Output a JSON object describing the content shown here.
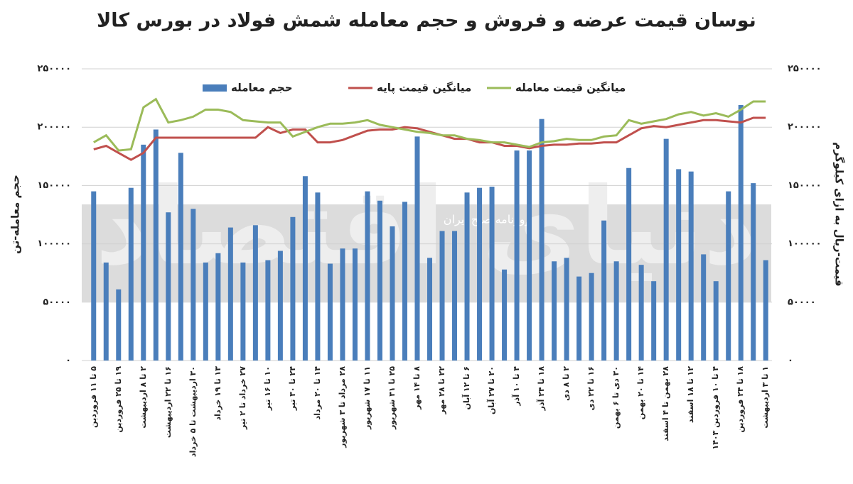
{
  "chart_data": {
    "type": "bar_line",
    "title": "نوسان قیمت عرضه و فروش و حجم معامله شمش فولاد در بورس کالا",
    "ylabel": "حجم معامله-تن",
    "y2label": "قیمت-ریال به ازای کیلوگرم",
    "watermark": [
      "دنیای اقتصاد",
      "روزنامه صبح ایران"
    ],
    "categories": [
      "۵ تا ۱۱ فروردین",
      null,
      "۱۹ تا ۲۵ فروردین",
      null,
      "۲ تا ۸ اردیبهشت",
      null,
      "۱۶ تا ۲۲ اردیبهشت",
      null,
      "۳۰ اردیبهشت تا ۵ خرداد",
      null,
      "۱۳ تا ۱۹ خرداد",
      null,
      "۲۷ خرداد تا ۲ تیر",
      null,
      "۱۰ تا ۱۶ تیر",
      null,
      "۲۴ تا ۳۰ تیر",
      null,
      "۱۴ تا ۲۰ مرداد",
      null,
      "۲۸ مرداد تا ۳ شهریور",
      null,
      "۱۱ تا ۱۷ شهریور",
      null,
      "۲۵ تا ۳۱ شهریور",
      null,
      "۸ تا ۱۴ مهر",
      null,
      "۲۲ تا ۲۸ مهر",
      null,
      "۶ تا ۱۲ آبان",
      null,
      "۲۰ تا ۲۷ آبان",
      null,
      "۴ تا ۱۰ آذر",
      null,
      "۱۸ تا ۲۴ آذر",
      null,
      "۲ تا ۸ دی",
      null,
      "۱۶ تا ۲۲ دی",
      null,
      "۳۰ دی تا ۶ بهمن",
      null,
      "۱۴ تا ۲۰ بهمن",
      null,
      "۲۸ بهمن تا ۴ اسفند",
      null,
      "۱۲ تا ۱۸ اسفند",
      null,
      "۴ تا ۱۰ فروردین ۱۴۰۳",
      null,
      "۱۸ تا ۲۴ فروردین",
      null,
      "۱ تا ۳ اردیبهشت"
    ],
    "series": [
      {
        "name": "حجم معامله",
        "type": "bar",
        "color": "#4a7ebb",
        "values": [
          145000,
          84000,
          61000,
          148000,
          185000,
          198000,
          127000,
          178000,
          130000,
          84000,
          92000,
          114000,
          84000,
          116000,
          86000,
          94000,
          123000,
          158000,
          144000,
          83000,
          96000,
          96000,
          145000,
          137000,
          115000,
          136000,
          192000,
          88000,
          111000,
          111000,
          144000,
          148000,
          149000,
          78000,
          180000,
          180000,
          207000,
          85000,
          88000,
          72000,
          75000,
          120000,
          85000,
          165000,
          82000,
          68000,
          190000,
          164000,
          162000,
          91000,
          68000,
          145000,
          219000,
          152000,
          86000
        ]
      },
      {
        "name": "میانگین قیمت پایه",
        "type": "line",
        "axis": "y2",
        "color": "#c0504d",
        "values": [
          181000,
          184000,
          178000,
          172000,
          178000,
          191000,
          191000,
          191000,
          191000,
          191000,
          191000,
          191000,
          191000,
          191000,
          200000,
          195000,
          198000,
          198000,
          187000,
          187000,
          189000,
          193000,
          197000,
          198000,
          198000,
          200000,
          199000,
          196000,
          193000,
          190000,
          190000,
          187000,
          187000,
          184000,
          184000,
          182000,
          184000,
          185000,
          185000,
          186000,
          186000,
          187000,
          187000,
          193000,
          199000,
          201000,
          200000,
          202000,
          204000,
          206000,
          206000,
          205000,
          204000,
          208000,
          208000
        ]
      },
      {
        "name": "میانگین قیمت معامله",
        "type": "line",
        "axis": "y2",
        "color": "#9bbb59",
        "values": [
          187000,
          193000,
          180000,
          181000,
          217000,
          224000,
          204000,
          206000,
          209000,
          215000,
          215000,
          213000,
          206000,
          205000,
          204000,
          204000,
          192000,
          196000,
          200000,
          203000,
          203000,
          204000,
          206000,
          202000,
          200000,
          198000,
          196000,
          195000,
          193000,
          193000,
          190000,
          189000,
          187000,
          187000,
          185000,
          183000,
          187000,
          188000,
          190000,
          189000,
          189000,
          192000,
          193000,
          206000,
          203000,
          205000,
          207000,
          211000,
          213000,
          210000,
          212000,
          209000,
          215000,
          222000,
          222000
        ]
      }
    ],
    "ylim": [
      0,
      250000
    ],
    "yticks": [
      {
        "value": 0,
        "label": "۰"
      },
      {
        "value": 50000,
        "label": "۵۰۰۰۰"
      },
      {
        "value": 100000,
        "label": "۱۰۰۰۰۰"
      },
      {
        "value": 150000,
        "label": "۱۵۰۰۰۰"
      },
      {
        "value": 200000,
        "label": "۲۰۰۰۰۰"
      },
      {
        "value": 250000,
        "label": "۲۵۰۰۰۰"
      }
    ],
    "y2lim": [
      0,
      250000
    ],
    "y2ticks": [
      {
        "value": 0,
        "label": "۰"
      },
      {
        "value": 50000,
        "label": "۵۰۰۰۰"
      },
      {
        "value": 100000,
        "label": "۱۰۰۰۰۰"
      },
      {
        "value": 150000,
        "label": "۱۵۰۰۰۰"
      },
      {
        "value": 200000,
        "label": "۲۰۰۰۰۰"
      },
      {
        "value": 250000,
        "label": "۲۵۰۰۰۰"
      }
    ],
    "grid": true,
    "legend": "top"
  }
}
